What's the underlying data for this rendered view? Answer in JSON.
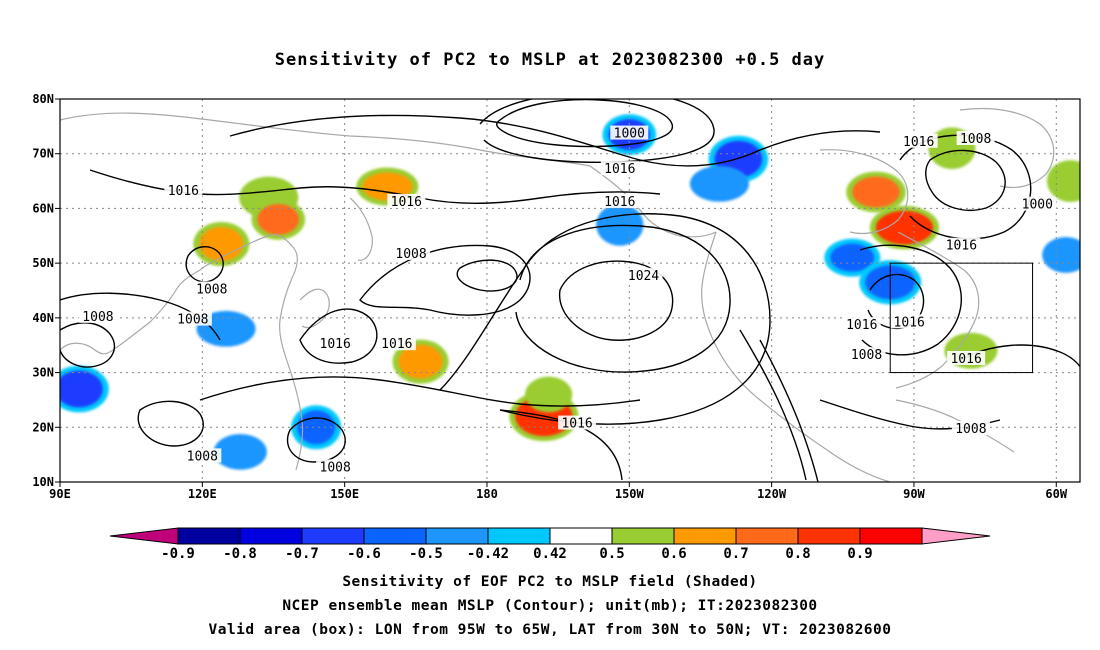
{
  "title": "Sensitivity of PC2 to MSLP at 2023082300 +0.5 day",
  "map": {
    "lat_labels": [
      "80N",
      "70N",
      "60N",
      "50N",
      "40N",
      "30N",
      "20N",
      "10N"
    ],
    "lon_labels": [
      "90E",
      "120E",
      "150E",
      "180",
      "150W",
      "120W",
      "90W",
      "60W"
    ],
    "lat_range": [
      10,
      80
    ],
    "lon_range_deg_east": [
      90,
      305
    ],
    "gridlines": "dotted",
    "valid_box": {
      "lon": [
        "95W",
        "65W"
      ],
      "lat": [
        "30N",
        "50N"
      ]
    },
    "contour_labels": [
      {
        "text": "1000",
        "lon": 210,
        "lat": 73.5
      },
      {
        "text": "1016",
        "lon": 208,
        "lat": 67
      },
      {
        "text": "1016",
        "lon": 116,
        "lat": 63
      },
      {
        "text": "1016",
        "lon": 163,
        "lat": 61
      },
      {
        "text": "1016",
        "lon": 208,
        "lat": 61
      },
      {
        "text": "1016",
        "lon": 271,
        "lat": 72
      },
      {
        "text": "1008",
        "lon": 283,
        "lat": 72.5
      },
      {
        "text": "1000",
        "lon": 296,
        "lat": 60.5
      },
      {
        "text": "1016",
        "lon": 280,
        "lat": 53
      },
      {
        "text": "1008",
        "lon": 164,
        "lat": 51.5
      },
      {
        "text": "1008",
        "lon": 122,
        "lat": 45
      },
      {
        "text": "1024",
        "lon": 213,
        "lat": 47.5
      },
      {
        "text": "1008",
        "lon": 98,
        "lat": 40
      },
      {
        "text": "1008",
        "lon": 118,
        "lat": 39.5
      },
      {
        "text": "1016",
        "lon": 259,
        "lat": 38.5
      },
      {
        "text": "1016",
        "lon": 269,
        "lat": 39
      },
      {
        "text": "1016",
        "lon": 148,
        "lat": 35
      },
      {
        "text": "1016",
        "lon": 161,
        "lat": 35
      },
      {
        "text": "1008",
        "lon": 260,
        "lat": 33
      },
      {
        "text": "1016",
        "lon": 281,
        "lat": 32.3
      },
      {
        "text": "1016",
        "lon": 199,
        "lat": 20.5
      },
      {
        "text": "1008",
        "lon": 120,
        "lat": 14.5
      },
      {
        "text": "1008",
        "lon": 148,
        "lat": 12.5
      },
      {
        "text": "1008",
        "lon": 282,
        "lat": 19.5
      }
    ],
    "sensitivity_blobs": [
      {
        "lon": 210,
        "lat": 73.5,
        "value": -0.6
      },
      {
        "lon": 233,
        "lat": 69,
        "value": -0.6
      },
      {
        "lon": 229,
        "lat": 64.5,
        "value": -0.42
      },
      {
        "lon": 208,
        "lat": 57,
        "value": -0.42
      },
      {
        "lon": 257,
        "lat": 51,
        "value": -0.5
      },
      {
        "lon": 265,
        "lat": 46.5,
        "value": -0.5
      },
      {
        "lon": 302,
        "lat": 51.5,
        "value": -0.42
      },
      {
        "lon": 94,
        "lat": 27,
        "value": -0.6
      },
      {
        "lon": 125,
        "lat": 38,
        "value": -0.42
      },
      {
        "lon": 144,
        "lat": 20,
        "value": -0.5
      },
      {
        "lon": 128,
        "lat": 15.5,
        "value": -0.42
      },
      {
        "lon": 192,
        "lat": 22,
        "value": 0.7
      },
      {
        "lon": 193,
        "lat": 26,
        "value": 0.42
      },
      {
        "lon": 166,
        "lat": 32,
        "value": 0.5
      },
      {
        "lon": 268,
        "lat": 56.5,
        "value": 0.7
      },
      {
        "lon": 278,
        "lat": 71,
        "value": 0.42
      },
      {
        "lon": 262,
        "lat": 63,
        "value": 0.6
      },
      {
        "lon": 134,
        "lat": 62,
        "value": 0.42
      },
      {
        "lon": 136,
        "lat": 58,
        "value": 0.6
      },
      {
        "lon": 124,
        "lat": 53.5,
        "value": 0.5
      },
      {
        "lon": 159,
        "lat": 64,
        "value": 0.5
      },
      {
        "lon": 303,
        "lat": 65,
        "value": 0.42
      },
      {
        "lon": 282,
        "lat": 34,
        "value": 0.42
      }
    ]
  },
  "colorbar": {
    "tick_labels": [
      "-0.9",
      "-0.8",
      "-0.7",
      "-0.6",
      "-0.5",
      "-0.42",
      "0.42",
      "0.5",
      "0.6",
      "0.7",
      "0.8",
      "0.9"
    ],
    "colors": [
      "#c0007a",
      "#0000a0",
      "#0000e0",
      "#1e3cff",
      "#0a64ff",
      "#1e96ff",
      "#00c8ff",
      "#ffffff",
      "#9acd32",
      "#ff9900",
      "#ff6a1a",
      "#ff3300",
      "#ff0000",
      "#ff9ec8"
    ]
  },
  "captions": [
    "Sensitivity of EOF PC2 to MSLP field (Shaded)",
    "NCEP ensemble mean MSLP (Contour); unit(mb); IT:2023082300",
    "Valid area (box): LON from 95W to 65W, LAT from 30N to 50N; VT: 2023082600"
  ]
}
